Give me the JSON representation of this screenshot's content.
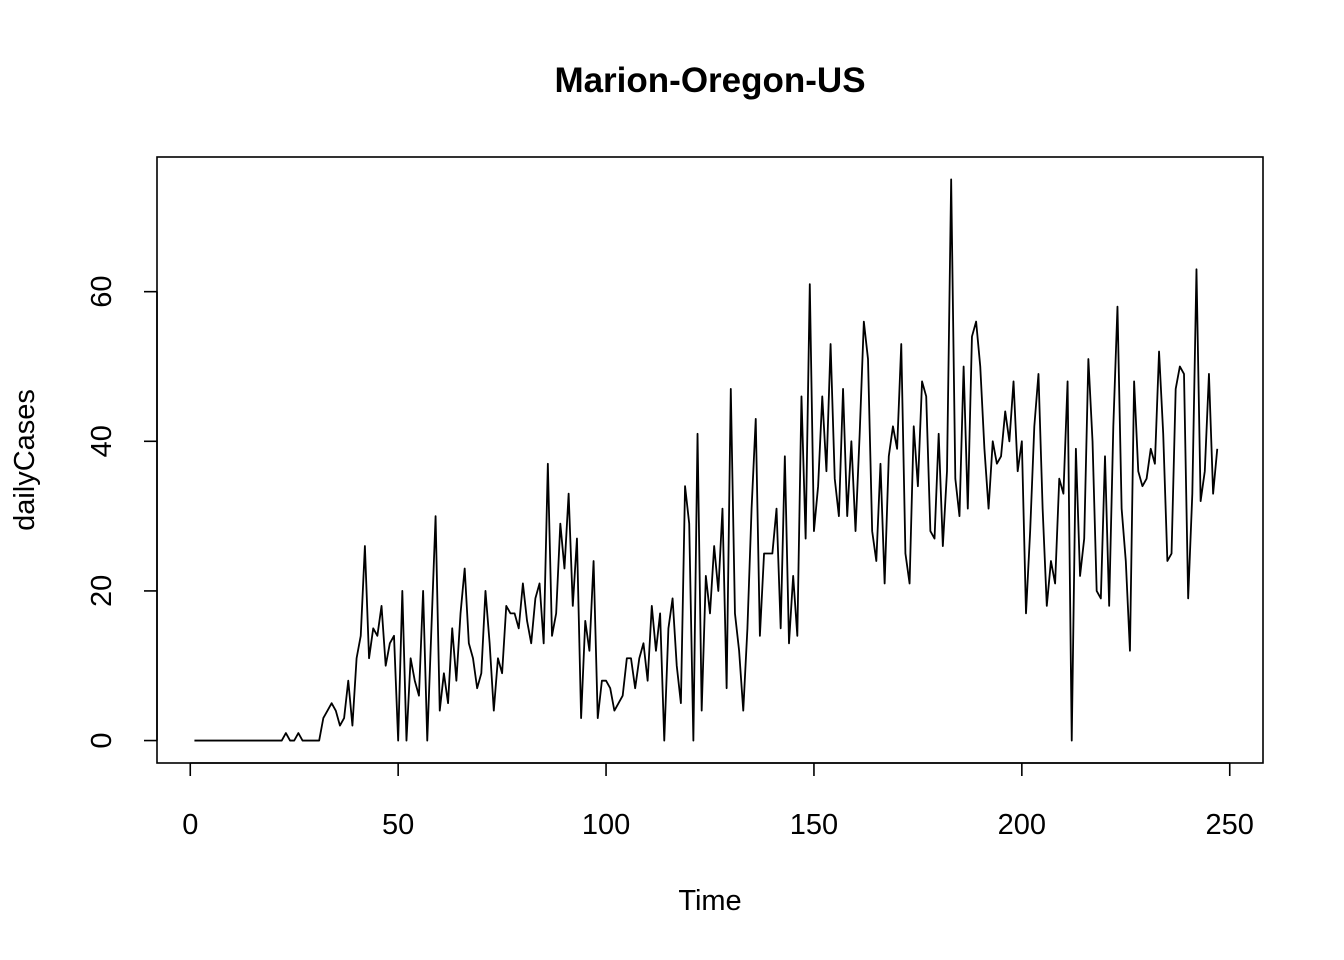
{
  "chart_data": {
    "type": "line",
    "title": "Marion-Oregon-US",
    "xlabel": "Time",
    "ylabel": "dailyCases",
    "xlim": [
      -8,
      258
    ],
    "ylim": [
      -3,
      78
    ],
    "x_ticks": [
      0,
      50,
      100,
      150,
      200,
      250
    ],
    "y_ticks": [
      0,
      20,
      40,
      60
    ],
    "x_tick_labels": [
      "0",
      "50",
      "100",
      "150",
      "200",
      "250"
    ],
    "y_tick_labels": [
      "0",
      "20",
      "40",
      "60"
    ],
    "grid": false,
    "line_color": "#000000",
    "x_start": 1,
    "values": [
      0,
      0,
      0,
      0,
      0,
      0,
      0,
      0,
      0,
      0,
      0,
      0,
      0,
      0,
      0,
      0,
      0,
      0,
      0,
      0,
      0,
      0,
      1,
      0,
      0,
      1,
      0,
      0,
      0,
      0,
      0,
      3,
      4,
      5,
      4,
      2,
      3,
      8,
      2,
      11,
      14,
      26,
      11,
      15,
      14,
      18,
      10,
      13,
      14,
      0,
      20,
      0,
      11,
      8,
      6,
      20,
      0,
      15,
      30,
      4,
      9,
      5,
      15,
      8,
      17,
      23,
      13,
      11,
      7,
      9,
      20,
      13,
      4,
      11,
      9,
      18,
      17,
      17,
      15,
      21,
      16,
      13,
      19,
      21,
      13,
      37,
      14,
      17,
      29,
      23,
      33,
      18,
      27,
      3,
      16,
      12,
      24,
      3,
      8,
      8,
      7,
      4,
      5,
      6,
      11,
      11,
      7,
      11,
      13,
      8,
      18,
      12,
      17,
      0,
      15,
      19,
      10,
      5,
      34,
      29,
      0,
      41,
      4,
      22,
      17,
      26,
      20,
      31,
      7,
      47,
      17,
      12,
      4,
      15,
      31,
      43,
      14,
      25,
      25,
      25,
      31,
      15,
      38,
      13,
      22,
      14,
      46,
      27,
      61,
      28,
      34,
      46,
      36,
      53,
      35,
      30,
      47,
      30,
      40,
      28,
      41,
      56,
      51,
      28,
      24,
      37,
      21,
      38,
      42,
      39,
      53,
      25,
      21,
      42,
      34,
      48,
      46,
      28,
      27,
      41,
      26,
      36,
      75,
      35,
      30,
      50,
      31,
      54,
      56,
      50,
      39,
      31,
      40,
      37,
      38,
      44,
      40,
      48,
      36,
      40,
      17,
      28,
      42,
      49,
      31,
      18,
      24,
      21,
      35,
      33,
      48,
      0,
      39,
      22,
      27,
      51,
      40,
      20,
      19,
      38,
      18,
      42,
      58,
      31,
      24,
      12,
      48,
      36,
      34,
      35,
      39,
      37,
      52,
      41,
      24,
      25,
      47,
      50,
      49,
      19,
      33,
      63,
      32,
      36,
      49,
      33,
      39
    ]
  }
}
